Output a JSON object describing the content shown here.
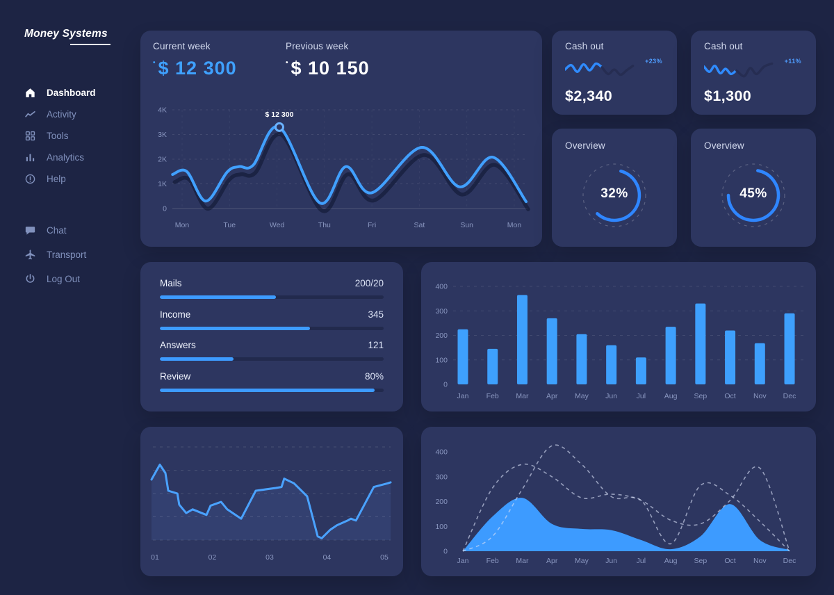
{
  "app": {
    "logo_text": "Money Systems"
  },
  "colors": {
    "background": "#1d2444",
    "card": "#2d3660",
    "accent_blue": "#3d9bff",
    "muted_text": "#8a97c0"
  },
  "sidebar": {
    "primary": [
      {
        "label": "Dashboard",
        "icon": "home-icon",
        "active": true
      },
      {
        "label": "Activity",
        "icon": "activity-icon",
        "active": false
      },
      {
        "label": "Tools",
        "icon": "grid-icon",
        "active": false
      },
      {
        "label": "Analytics",
        "icon": "bar-chart-icon",
        "active": false
      },
      {
        "label": "Help",
        "icon": "help-icon",
        "active": false
      }
    ],
    "secondary": [
      {
        "label": "Chat",
        "icon": "chat-icon",
        "active": false
      },
      {
        "label": "Transport",
        "icon": "airplane-icon",
        "active": false
      },
      {
        "label": "Log Out",
        "icon": "power-icon",
        "active": false
      }
    ]
  },
  "weekly": {
    "current_label": "Current week",
    "current_value": "$ 12 300",
    "previous_label": "Previous week",
    "previous_value": "$ 10 150"
  },
  "cashout": [
    {
      "title": "Cash out",
      "change": "+23%",
      "value": "$2,340"
    },
    {
      "title": "Cash out",
      "change": "+11%",
      "value": "$1,300"
    }
  ],
  "overview": [
    {
      "title": "Overview",
      "percent": "32%",
      "arc_start_deg": 285,
      "arc_sweep_deg": 208
    },
    {
      "title": "Overview",
      "percent": "45%",
      "arc_start_deg": 280,
      "arc_sweep_deg": 260
    }
  ],
  "progress": {
    "items": [
      {
        "label": "Mails",
        "value": "200/20",
        "percent": 52
      },
      {
        "label": "Income",
        "value": "345",
        "percent": 67
      },
      {
        "label": "Answers",
        "value": "121",
        "percent": 33
      },
      {
        "label": "Review",
        "value": "80%",
        "percent": 96
      }
    ]
  },
  "chart_data": [
    {
      "id": "weekly",
      "type": "line",
      "x_labels": [
        "Mon",
        "Tue",
        "Wed",
        "Thu",
        "Fri",
        "Sat",
        "Sun",
        "Mon"
      ],
      "y_tick_labels": [
        "0",
        "1K",
        "2K",
        "3K",
        "4K"
      ],
      "ylim": [
        0,
        4000
      ],
      "grid": true,
      "points": [
        [
          -0.2,
          1380
        ],
        [
          0.1,
          1500
        ],
        [
          0.5,
          300
        ],
        [
          0.95,
          1480
        ],
        [
          1.2,
          1700
        ],
        [
          1.5,
          1760
        ],
        [
          2.05,
          3300
        ],
        [
          2.9,
          230
        ],
        [
          3.45,
          1700
        ],
        [
          4.0,
          640
        ],
        [
          5.05,
          2480
        ],
        [
          5.85,
          880
        ],
        [
          6.55,
          2080
        ],
        [
          7.25,
          280
        ]
      ],
      "tooltip": {
        "label": "$ 12 300",
        "x": 2.05,
        "y": 3300
      }
    },
    {
      "id": "monthly_bars",
      "type": "bar",
      "categories": [
        "Jan",
        "Feb",
        "Mar",
        "Apr",
        "May",
        "Jun",
        "Jul",
        "Aug",
        "Sep",
        "Oct",
        "Nov",
        "Dec"
      ],
      "values": [
        225,
        145,
        365,
        270,
        205,
        160,
        110,
        235,
        330,
        220,
        168,
        290
      ],
      "y_ticks": [
        0,
        100,
        200,
        300,
        400
      ],
      "ylim": [
        0,
        400
      ],
      "grid": true
    },
    {
      "id": "mini_line",
      "type": "line",
      "x_labels": [
        "01",
        "02",
        "03",
        "04",
        "05"
      ],
      "ylim": [
        0,
        1
      ],
      "grid": true,
      "points_norm": [
        [
          0,
          0.65
        ],
        [
          0.035,
          0.81
        ],
        [
          0.058,
          0.72
        ],
        [
          0.07,
          0.53
        ],
        [
          0.108,
          0.5
        ],
        [
          0.116,
          0.38
        ],
        [
          0.145,
          0.29
        ],
        [
          0.172,
          0.33
        ],
        [
          0.201,
          0.3
        ],
        [
          0.23,
          0.27
        ],
        [
          0.247,
          0.37
        ],
        [
          0.291,
          0.41
        ],
        [
          0.317,
          0.33
        ],
        [
          0.375,
          0.23
        ],
        [
          0.436,
          0.53
        ],
        [
          0.52,
          0.56
        ],
        [
          0.544,
          0.57
        ],
        [
          0.555,
          0.66
        ],
        [
          0.596,
          0.61
        ],
        [
          0.651,
          0.47
        ],
        [
          0.695,
          0.04
        ],
        [
          0.712,
          0.02
        ],
        [
          0.747,
          0.11
        ],
        [
          0.776,
          0.16
        ],
        [
          0.82,
          0.21
        ],
        [
          0.834,
          0.23
        ],
        [
          0.855,
          0.21
        ],
        [
          0.93,
          0.57
        ],
        [
          0.988,
          0.61
        ],
        [
          1,
          0.62
        ]
      ]
    },
    {
      "id": "annual_area",
      "type": "area",
      "categories": [
        "Jan",
        "Feb",
        "Mar",
        "Apr",
        "May",
        "Jun",
        "Jul",
        "Aug",
        "Sep",
        "Oct",
        "Nov",
        "Dec"
      ],
      "y_ticks": [
        0,
        100,
        200,
        300,
        400
      ],
      "ylim": [
        0,
        450
      ],
      "grid": false,
      "series": [
        {
          "name": "filled",
          "style": "solid",
          "values": [
            0,
            140,
            215,
            110,
            90,
            85,
            45,
            8,
            60,
            190,
            45,
            5
          ]
        },
        {
          "name": "dashed-a",
          "style": "dashed",
          "values": [
            0,
            255,
            350,
            300,
            215,
            230,
            205,
            125,
            110,
            205,
            335,
            0
          ]
        },
        {
          "name": "dashed-b",
          "style": "dashed",
          "values": [
            0,
            60,
            250,
            425,
            350,
            220,
            205,
            30,
            265,
            225,
            120,
            0
          ]
        }
      ]
    },
    {
      "id": "spark-0",
      "type": "line",
      "series": [
        {
          "name": "recent",
          "style": "solid",
          "points": [
            [
              0,
              16
            ],
            [
              8,
              10
            ],
            [
              16,
              19
            ],
            [
              24,
              9
            ],
            [
              32,
              17
            ],
            [
              40,
              8
            ],
            [
              48,
              13
            ]
          ]
        },
        {
          "name": "previous",
          "style": "muted",
          "points": [
            [
              48,
              13
            ],
            [
              56,
              22
            ],
            [
              64,
              16
            ],
            [
              72,
              23
            ],
            [
              80,
              17
            ],
            [
              88,
              11
            ]
          ]
        }
      ]
    },
    {
      "id": "spark-1",
      "type": "line",
      "series": [
        {
          "name": "recent",
          "style": "solid",
          "points": [
            [
              0,
              12
            ],
            [
              7,
              19
            ],
            [
              14,
              11
            ],
            [
              21,
              21
            ],
            [
              28,
              15
            ],
            [
              35,
              22
            ],
            [
              42,
              17
            ]
          ]
        },
        {
          "name": "previous",
          "style": "muted",
          "points": [
            [
              42,
              17
            ],
            [
              52,
              25
            ],
            [
              60,
              14
            ],
            [
              68,
              22
            ],
            [
              78,
              12
            ],
            [
              88,
              8
            ]
          ]
        }
      ]
    }
  ]
}
